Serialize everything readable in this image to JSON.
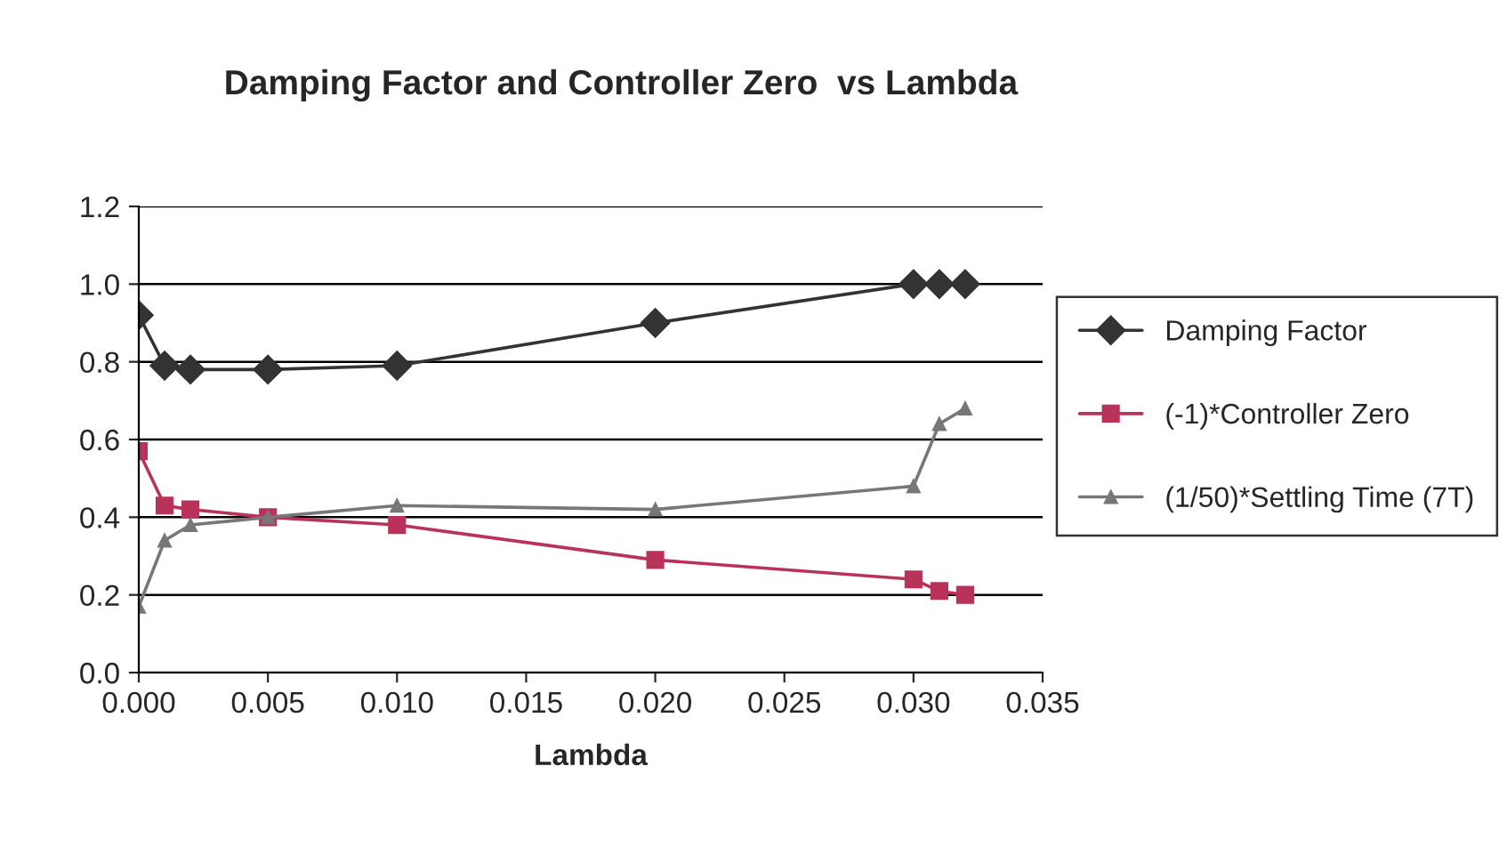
{
  "chart_data": {
    "type": "line",
    "title": "Damping Factor and Controller Zero  vs Lambda",
    "xlabel": "Lambda",
    "x": [
      0,
      0.001,
      0.002,
      0.005,
      0.01,
      0.02,
      0.03,
      0.031,
      0.032
    ],
    "series": [
      {
        "name": "Damping Factor",
        "color": "#333333",
        "marker": "diamond",
        "values": [
          0.92,
          0.79,
          0.78,
          0.78,
          0.79,
          0.9,
          1.0,
          1.0,
          1.0
        ]
      },
      {
        "name": "(-1)*Controller Zero",
        "color": "#b8325a",
        "marker": "square",
        "values": [
          0.57,
          0.43,
          0.42,
          0.4,
          0.38,
          0.29,
          0.24,
          0.21,
          0.2
        ]
      },
      {
        "name": "(1/50)*Settling Time (7T)",
        "color": "#777777",
        "marker": "triangle",
        "values": [
          0.17,
          0.34,
          0.38,
          0.4,
          0.43,
          0.42,
          0.48,
          0.64,
          0.68
        ]
      }
    ],
    "xlim": [
      0,
      0.035
    ],
    "xticks": [
      {
        "value": 0,
        "label": "0.000"
      },
      {
        "value": 0.005,
        "label": "0.005"
      },
      {
        "value": 0.01,
        "label": "0.010"
      },
      {
        "value": 0.015,
        "label": "0.015"
      },
      {
        "value": 0.02,
        "label": "0.020"
      },
      {
        "value": 0.025,
        "label": "0.025"
      },
      {
        "value": 0.03,
        "label": "0.030"
      },
      {
        "value": 0.035,
        "label": "0.035"
      }
    ],
    "ylim": [
      0,
      1.2
    ],
    "yticks": [
      {
        "value": 0,
        "label": "0.0"
      },
      {
        "value": 0.2,
        "label": "0.2"
      },
      {
        "value": 0.4,
        "label": "0.4"
      },
      {
        "value": 0.6,
        "label": "0.6"
      },
      {
        "value": 0.8,
        "label": "0.8"
      },
      {
        "value": 1.0,
        "label": "1.0"
      },
      {
        "value": 1.2,
        "label": "1.2"
      }
    ],
    "grid": "y",
    "legend": "right"
  }
}
